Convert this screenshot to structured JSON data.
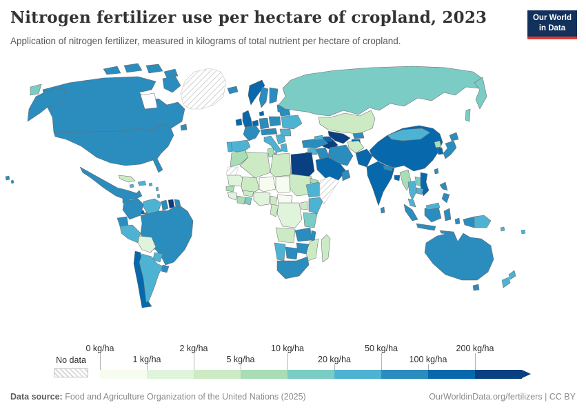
{
  "header": {
    "title": "Nitrogen fertilizer use per hectare of cropland, 2023",
    "subtitle": "Application of nitrogen fertilizer, measured in kilograms of total nutrient per hectare of cropland.",
    "logo": {
      "line1": "Our World",
      "line2": "in Data",
      "bg": "#12325c",
      "accent": "#e0392e"
    }
  },
  "footer": {
    "source_label": "Data source:",
    "source_value": " Food and Agriculture Organization of the United Nations (2025)",
    "right_text": "OurWorldinData.org/fertilizers | CC BY"
  },
  "legend": {
    "no_data_label": "No data",
    "bins": [
      {
        "label": "0 kg/ha",
        "color": "#f7fcf0"
      },
      {
        "label": "1 kg/ha",
        "color": "#e0f3db"
      },
      {
        "label": "2 kg/ha",
        "color": "#ccebc5"
      },
      {
        "label": "5 kg/ha",
        "color": "#a8ddb5"
      },
      {
        "label": "10 kg/ha",
        "color": "#7bccc4"
      },
      {
        "label": "20 kg/ha",
        "color": "#4eb3d3"
      },
      {
        "label": "50 kg/ha",
        "color": "#2b8cbe"
      },
      {
        "label": "100 kg/ha",
        "color": "#0868ac"
      },
      {
        "label": "200 kg/ha",
        "color": "#084081"
      }
    ]
  },
  "map": {
    "ocean": "#ffffff",
    "border": "#6d6d6d",
    "fills": {
      "canada": "#2b8cbe",
      "usa": "#2b8cbe",
      "mexico": "#2b8cbe",
      "guatemala": "#2b8cbe",
      "honduras": "#4eb3d3",
      "costa_rica": "#0868ac",
      "panama": "#2b8cbe",
      "cuba": "#ccebc5",
      "hispaniola": "#4eb3d3",
      "jamaica": "#4eb3d3",
      "puerto_rico": "#4eb3d3",
      "lesser_antilles": "#4eb3d3",
      "colombia": "#2b8cbe",
      "venezuela": "#4eb3d3",
      "guyana": "#2b8cbe",
      "suriname": "#084081",
      "french_guiana": "#2b8cbe",
      "ecuador": "#2b8cbe",
      "peru": "#4eb3d3",
      "brazil": "#2b8cbe",
      "bolivia": "#e0f3db",
      "paraguay": "#4eb3d3",
      "chile": "#0868ac",
      "argentina": "#4eb3d3",
      "uruguay": "#2b8cbe",
      "iceland": "#2b8cbe",
      "ireland": "#0868ac",
      "uk": "#0868ac",
      "norway": "#0868ac",
      "sweden": "#2b8cbe",
      "finland": "#2b8cbe",
      "baltics": "#2b8cbe",
      "denmark": "#0868ac",
      "benelux": "#0868ac",
      "germany": "#2b8cbe",
      "poland": "#2b8cbe",
      "france": "#2b8cbe",
      "spain": "#4eb3d3",
      "portugal": "#4eb3d3",
      "central_europe": "#2b8cbe",
      "italy": "#4eb3d3",
      "balkans": "#4eb3d3",
      "romania": "#4eb3d3",
      "greece": "#4eb3d3",
      "ukraine": "#4eb3d3",
      "belarus": "#2b8cbe",
      "russia": "#7bccc4",
      "kazakhstan": "#ccebc5",
      "uzbekistan": "#084081",
      "turkmenistan": "#084081",
      "kyrgyzstan": "#2b8cbe",
      "tajikistan": "#0868ac",
      "georgia": "#4eb3d3",
      "azerbaijan": "#0868ac",
      "turkey": "#2b8cbe",
      "syria": "#4eb3d3",
      "israel": "#0868ac",
      "iraq": "#2b8cbe",
      "iran": "#2b8cbe",
      "afghanistan": "#ccebc5",
      "pakistan": "#0868ac",
      "saudi_arabia": "#0868ac",
      "yemen": "#a8ddb5",
      "oman": "#2b8cbe",
      "morocco": "#a8ddb5",
      "algeria": "#ccebc5",
      "tunisia": "#a8ddb5",
      "libya": "#ccebc5",
      "egypt": "#084081",
      "mauritania": "#e0f3db",
      "mali": "#ccebc5",
      "niger": "#f7fcf0",
      "chad": "#f7fcf0",
      "sudan": "#ccebc5",
      "eritrea": "#a8ddb5",
      "senegal": "#a8ddb5",
      "guinea": "#e0f3db",
      "ivory_coast": "#a8ddb5",
      "ghana": "#7bccc4",
      "burkina_faso": "#ccebc5",
      "nigeria": "#e0f3db",
      "cameroon": "#ccebc5",
      "central_african_republic": "#f7fcf0",
      "ethiopia": "#4eb3d3",
      "kenya": "#4eb3d3",
      "uganda": "#ccebc5",
      "tanzania": "#7bccc4",
      "drc": "#e0f3db",
      "congo": "#ccebc5",
      "angola": "#ccebc5",
      "zambia": "#2b8cbe",
      "malawi": "#2b8cbe",
      "mozambique": "#ccebc5",
      "zimbabwe": "#2b8cbe",
      "botswana": "#2b8cbe",
      "namibia": "#4eb3d3",
      "south_africa": "#2b8cbe",
      "madagascar": "#ccebc5",
      "china": "#0868ac",
      "mongolia": "#4eb3d3",
      "india": "#0868ac",
      "nepal": "#2b8cbe",
      "bangladesh": "#0868ac",
      "sri_lanka": "#2b8cbe",
      "myanmar": "#a8ddb5",
      "thailand": "#4eb3d3",
      "laos": "#7bccc4",
      "vietnam": "#0868ac",
      "cambodia": "#4eb3d3",
      "malaysia": "#4eb3d3",
      "indonesia": "#2b8cbe",
      "philippines": "#2b8cbe",
      "taiwan": "#2b8cbe",
      "south_korea": "#0868ac",
      "north_korea": "#a8ddb5",
      "japan": "#2b8cbe",
      "papua_new_guinea": "#4eb3d3",
      "australia": "#2b8cbe",
      "new_zealand": "#4eb3d3",
      "fiji": "#4eb3d3",
      "solomon_islands": "#4eb3d3"
    }
  },
  "chart_data": {
    "type": "choropleth",
    "title": "Nitrogen fertilizer use per hectare of cropland, 2023",
    "subtitle": "Application of nitrogen fertilizer, measured in kilograms of total nutrient per hectare of cropland.",
    "unit": "kg/ha",
    "year": 2023,
    "legend_position": "bottom",
    "bins": [
      {
        "range": "0-1 kg/ha",
        "color": "#f7fcf0"
      },
      {
        "range": "1-2 kg/ha",
        "color": "#e0f3db"
      },
      {
        "range": "2-5 kg/ha",
        "color": "#ccebc5"
      },
      {
        "range": "5-10 kg/ha",
        "color": "#a8ddb5"
      },
      {
        "range": "10-20 kg/ha",
        "color": "#7bccc4"
      },
      {
        "range": "20-50 kg/ha",
        "color": "#4eb3d3"
      },
      {
        "range": "50-100 kg/ha",
        "color": "#2b8cbe"
      },
      {
        "range": "100-200 kg/ha",
        "color": "#0868ac"
      },
      {
        "range": "200+ kg/ha",
        "color": "#084081"
      }
    ],
    "no_data": [
      "Greenland",
      "Somalia",
      "Western Sahara"
    ],
    "values_by_country": {
      "United States": "50-100 kg/ha",
      "Canada": "50-100 kg/ha",
      "Mexico": "50-100 kg/ha",
      "Costa Rica": "100-200 kg/ha",
      "Cuba": "2-5 kg/ha",
      "Colombia": "50-100 kg/ha",
      "Venezuela": "20-50 kg/ha",
      "Suriname": "200+ kg/ha",
      "Ecuador": "50-100 kg/ha",
      "Peru": "20-50 kg/ha",
      "Brazil": "50-100 kg/ha",
      "Bolivia": "1-2 kg/ha",
      "Chile": "100-200 kg/ha",
      "Argentina": "20-50 kg/ha",
      "Uruguay": "50-100 kg/ha",
      "United Kingdom": "100-200 kg/ha",
      "Ireland": "100-200 kg/ha",
      "Norway": "100-200 kg/ha",
      "Sweden": "50-100 kg/ha",
      "Finland": "50-100 kg/ha",
      "France": "50-100 kg/ha",
      "Germany": "50-100 kg/ha",
      "Spain": "20-50 kg/ha",
      "Portugal": "20-50 kg/ha",
      "Italy": "20-50 kg/ha",
      "Poland": "50-100 kg/ha",
      "Ukraine": "20-50 kg/ha",
      "Belarus": "50-100 kg/ha",
      "Romania": "20-50 kg/ha",
      "Greece": "20-50 kg/ha",
      "Iceland": "50-100 kg/ha",
      "Russia": "10-20 kg/ha",
      "Kazakhstan": "2-5 kg/ha",
      "Uzbekistan": "200+ kg/ha",
      "Turkmenistan": "200+ kg/ha",
      "Tajikistan": "100-200 kg/ha",
      "Turkey": "50-100 kg/ha",
      "Iran": "50-100 kg/ha",
      "Iraq": "50-100 kg/ha",
      "Saudi Arabia": "100-200 kg/ha",
      "Yemen": "5-10 kg/ha",
      "Israel": "100-200 kg/ha",
      "Afghanistan": "2-5 kg/ha",
      "Pakistan": "100-200 kg/ha",
      "Egypt": "200+ kg/ha",
      "Morocco": "5-10 kg/ha",
      "Algeria": "2-5 kg/ha",
      "Tunisia": "5-10 kg/ha",
      "Libya": "2-5 kg/ha",
      "Mauritania": "1-2 kg/ha",
      "Mali": "2-5 kg/ha",
      "Niger": "0-1 kg/ha",
      "Chad": "0-1 kg/ha",
      "Sudan": "2-5 kg/ha",
      "Senegal": "5-10 kg/ha",
      "Ghana": "10-20 kg/ha",
      "Nigeria": "1-2 kg/ha",
      "Cameroon": "2-5 kg/ha",
      "Central African Republic": "0-1 kg/ha",
      "Ethiopia": "20-50 kg/ha",
      "Kenya": "20-50 kg/ha",
      "Uganda": "2-5 kg/ha",
      "Tanzania": "10-20 kg/ha",
      "Democratic Republic of Congo": "1-2 kg/ha",
      "Angola": "2-5 kg/ha",
      "Zambia": "50-100 kg/ha",
      "Malawi": "50-100 kg/ha",
      "Mozambique": "2-5 kg/ha",
      "Zimbabwe": "50-100 kg/ha",
      "Botswana": "50-100 kg/ha",
      "Namibia": "20-50 kg/ha",
      "South Africa": "50-100 kg/ha",
      "Madagascar": "2-5 kg/ha",
      "China": "100-200 kg/ha",
      "Mongolia": "20-50 kg/ha",
      "India": "100-200 kg/ha",
      "Nepal": "50-100 kg/ha",
      "Bangladesh": "100-200 kg/ha",
      "Sri Lanka": "50-100 kg/ha",
      "Myanmar": "5-10 kg/ha",
      "Thailand": "20-50 kg/ha",
      "Laos": "10-20 kg/ha",
      "Vietnam": "100-200 kg/ha",
      "Cambodia": "20-50 kg/ha",
      "Malaysia": "20-50 kg/ha",
      "Indonesia": "50-100 kg/ha",
      "Philippines": "50-100 kg/ha",
      "Japan": "50-100 kg/ha",
      "South Korea": "100-200 kg/ha",
      "North Korea": "5-10 kg/ha",
      "Papua New Guinea": "20-50 kg/ha",
      "Australia": "50-100 kg/ha",
      "New Zealand": "20-50 kg/ha"
    }
  }
}
